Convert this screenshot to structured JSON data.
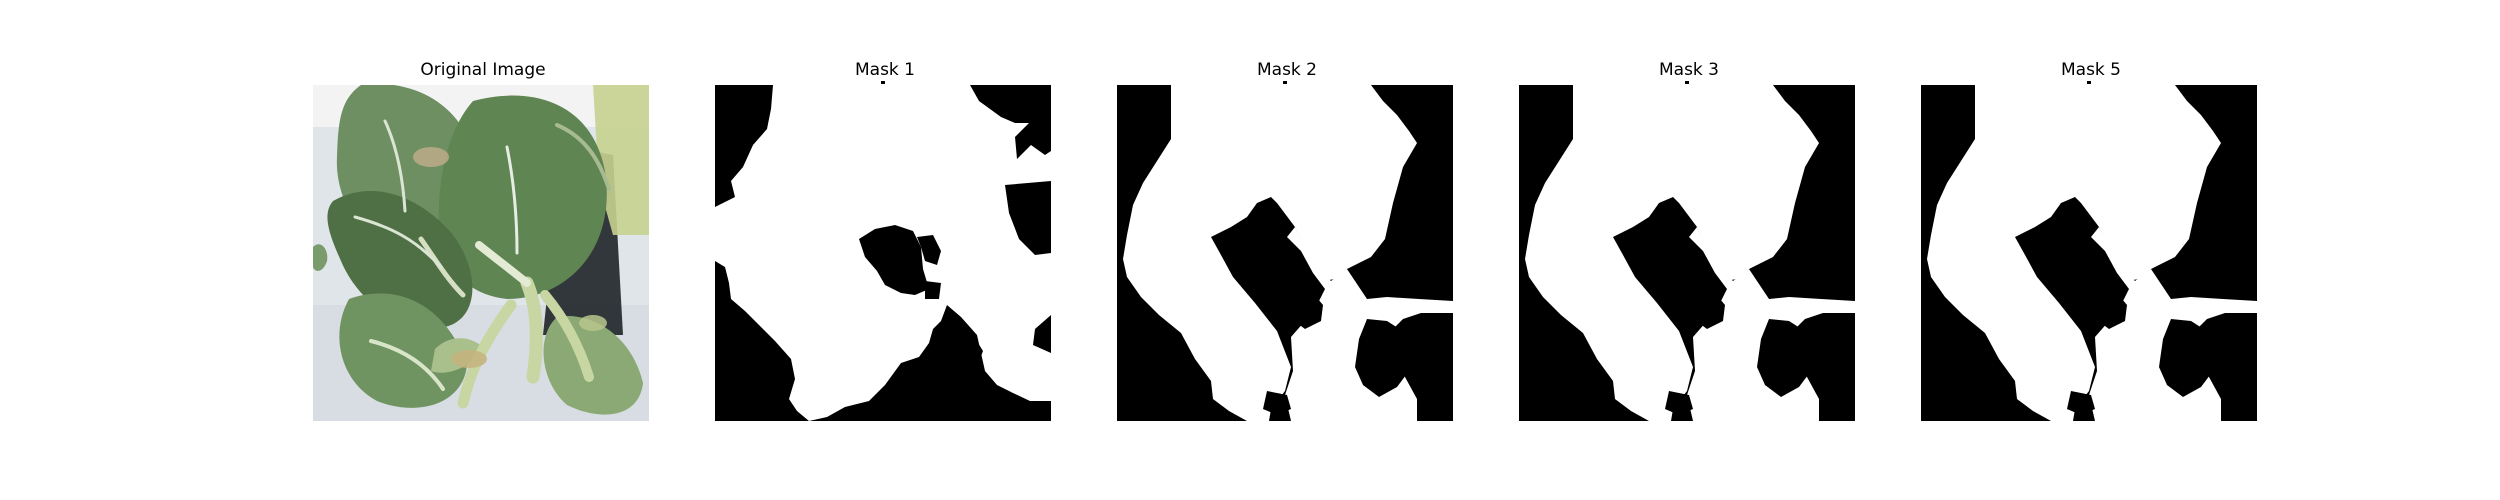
{
  "figure": {
    "panels": [
      {
        "title": "Original Image",
        "kind": "photo"
      },
      {
        "title": "Mask 1",
        "kind": "mask"
      },
      {
        "title": "Mask 2",
        "kind": "mask"
      },
      {
        "title": "Mask 3",
        "kind": "mask"
      },
      {
        "title": "Mask 5",
        "kind": "mask"
      }
    ],
    "colors": {
      "background": "#ffffff",
      "mask_foreground": "#ffffff",
      "mask_background": "#000000",
      "leaf_dark": "#4f6f45",
      "leaf_mid": "#6f9462",
      "leaf_light": "#9fbf86",
      "stem": "#c8d6a3",
      "wall": "#dfe5e8",
      "shadow": "#1f2428"
    }
  }
}
